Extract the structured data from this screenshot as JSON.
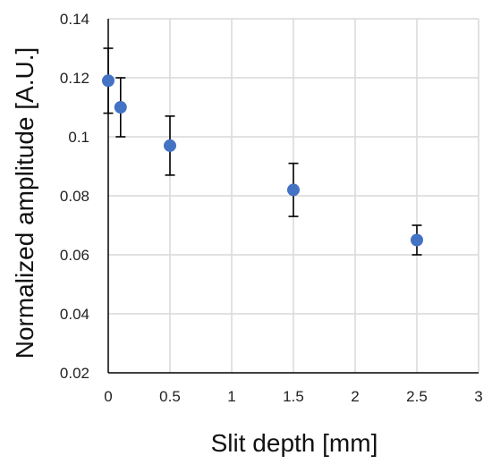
{
  "chart_data": {
    "type": "scatter",
    "title": "",
    "xlabel": "Slit depth [mm]",
    "ylabel": "Normalized amplitude [A.U.]",
    "xlim": [
      0,
      3
    ],
    "ylim": [
      0.02,
      0.14
    ],
    "xticks": [
      0,
      0.5,
      1,
      1.5,
      2,
      2.5,
      3
    ],
    "yticks": [
      0.02,
      0.04,
      0.06,
      0.08,
      0.1,
      0.12,
      0.14
    ],
    "xtick_labels": [
      "0",
      "0.5",
      "1",
      "1.5",
      "2",
      "2.5",
      "3"
    ],
    "ytick_labels": [
      "0.02",
      "0.04",
      "0.06",
      "0.08",
      "0.1",
      "0.12",
      "0.14"
    ],
    "grid": true,
    "legend": "none",
    "series": [
      {
        "color": "#4472c4",
        "points": [
          {
            "x": 0,
            "y": 0.119,
            "err_low": 0.108,
            "err_high": 0.13
          },
          {
            "x": 0.1,
            "y": 0.11,
            "err_low": 0.1,
            "err_high": 0.12
          },
          {
            "x": 0.5,
            "y": 0.097,
            "err_low": 0.087,
            "err_high": 0.107
          },
          {
            "x": 1.5,
            "y": 0.082,
            "err_low": 0.073,
            "err_high": 0.091
          },
          {
            "x": 2.5,
            "y": 0.065,
            "err_low": 0.06,
            "err_high": 0.07
          }
        ]
      }
    ]
  }
}
